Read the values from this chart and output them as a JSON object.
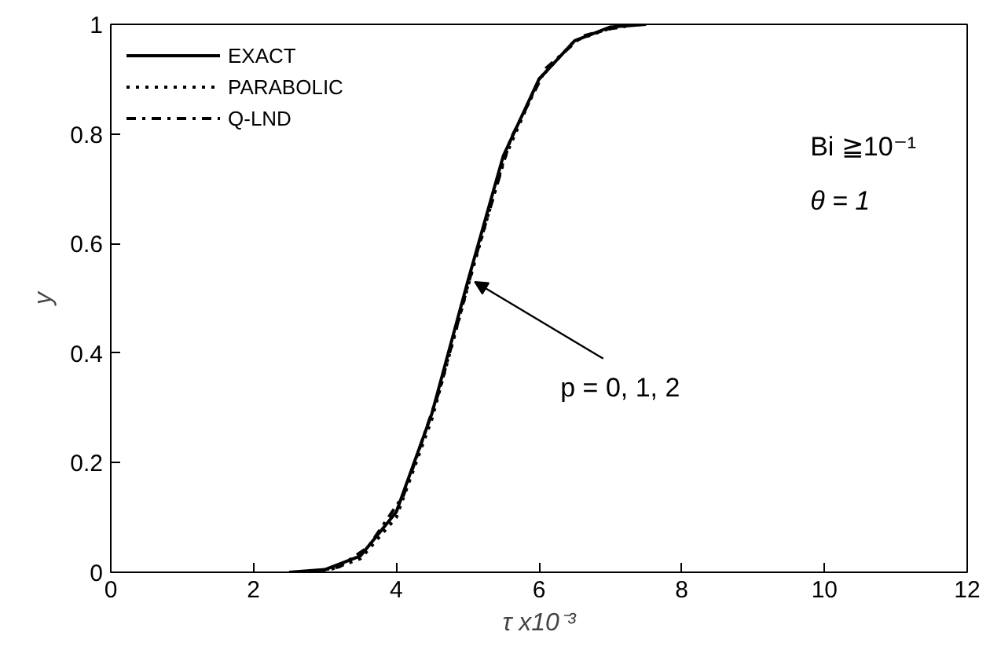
{
  "chart_data": {
    "type": "line",
    "xlabel": "τ x10⁻³",
    "ylabel": "y",
    "x": [
      2.5,
      3.0,
      3.5,
      4.0,
      4.5,
      5.0,
      5.5,
      6.0,
      6.5,
      7.0,
      7.5
    ],
    "series": [
      {
        "name": "EXACT",
        "color": "#000000",
        "line_style": "solid",
        "values": [
          0,
          0.005,
          0.03,
          0.11,
          0.29,
          0.53,
          0.76,
          0.9,
          0.97,
          0.995,
          1.0
        ]
      },
      {
        "name": "PARABOLIC",
        "color": "#000000",
        "line_style": "dotted",
        "x": [
          2.7,
          3.1,
          3.5,
          4.0,
          4.5,
          5.0,
          5.5,
          6.0,
          6.5,
          7.0,
          7.3
        ],
        "values": [
          0,
          0.006,
          0.025,
          0.1,
          0.28,
          0.52,
          0.75,
          0.9,
          0.97,
          0.993,
          0.998
        ]
      },
      {
        "name": "Q-LND",
        "color": "#000000",
        "line_style": "dashdot",
        "x": [
          2.8,
          3.2,
          3.6,
          4.1,
          4.6,
          5.1,
          5.6,
          6.1,
          6.6,
          7.0,
          7.2
        ],
        "values": [
          0,
          0.01,
          0.045,
          0.14,
          0.33,
          0.57,
          0.79,
          0.92,
          0.978,
          0.992,
          0.996
        ]
      }
    ],
    "xlim": [
      0,
      12
    ],
    "ylim": [
      0,
      1
    ],
    "xticks": [
      0,
      2,
      4,
      6,
      8,
      10,
      12
    ],
    "yticks": [
      0,
      0.2,
      0.4,
      0.6,
      0.8,
      1
    ],
    "grid": false,
    "legend": "top left",
    "annotations": [
      "Bi ≧10⁻¹",
      "θ = 1",
      {
        "text": "p = 0, 1, 2",
        "x": 5.1,
        "y": 0.53
      }
    ]
  }
}
